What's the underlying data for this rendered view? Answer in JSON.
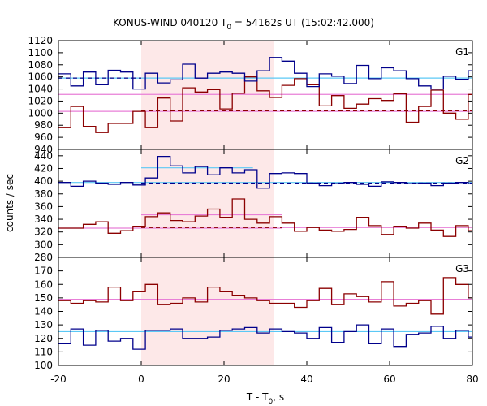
{
  "chart_data": {
    "type": "line",
    "title": {
      "main": "KONUS-WIND 040120 T",
      "sub": "0",
      "rest": " = 54162s UT (15:02:42.000)"
    },
    "xlabel": {
      "main": "T - T",
      "sub": "0",
      "rest": ", s"
    },
    "ylabel": "counts / sec",
    "xlim": [
      -20,
      80
    ],
    "x_ticks": [
      -20,
      0,
      20,
      40,
      60,
      80
    ],
    "highlight_interval": [
      0,
      32
    ],
    "highlight_color": "#fde8e8",
    "colors": {
      "red_series": "#8b0000",
      "blue_series": "#00008b",
      "red_fit": "#e87fd7",
      "blue_fit": "#5bc8f5",
      "dashed_red": "#8b0000",
      "dashed_blue": "#00008b"
    },
    "panels": [
      {
        "label": "G1",
        "ylim": [
          940,
          1120
        ],
        "y_ticks": [
          960,
          980,
          1000,
          1020,
          1040,
          1060,
          1080,
          1100,
          1120
        ],
        "y_tick_min": 940,
        "red": {
          "x": [
            -20,
            -17,
            -14,
            -11,
            -8,
            -5,
            -2,
            1,
            4,
            7,
            10,
            13,
            16,
            19,
            22,
            25,
            28,
            31,
            34,
            37,
            40,
            43,
            46,
            49,
            52,
            55,
            58,
            61,
            64,
            67,
            70,
            73,
            76,
            79
          ],
          "values": [
            976,
            1011,
            978,
            968,
            983,
            983,
            1003,
            976,
            1025,
            987,
            1042,
            1035,
            1039,
            1007,
            1033,
            1060,
            1037,
            1026,
            1046,
            1057,
            1047,
            1012,
            1029,
            1008,
            1015,
            1024,
            1021,
            1032,
            985,
            1011,
            1038,
            1000,
            990,
            1031
          ]
        },
        "red_fit": {
          "x": [
            -20,
            80
          ],
          "values": [
            1003,
            1003
          ]
        },
        "red_dashed": {
          "x": [
            0,
            80
          ],
          "values": [
            1004,
            1004
          ]
        },
        "blue": {
          "x": [
            -20,
            -17,
            -14,
            -11,
            -8,
            -5,
            -2,
            1,
            4,
            7,
            10,
            13,
            16,
            19,
            22,
            25,
            28,
            31,
            34,
            37,
            40,
            43,
            46,
            49,
            52,
            55,
            58,
            61,
            64,
            67,
            70,
            73,
            76,
            79
          ],
          "values": [
            1065,
            1045,
            1068,
            1047,
            1071,
            1068,
            1040,
            1066,
            1050,
            1055,
            1081,
            1058,
            1066,
            1068,
            1066,
            1053,
            1070,
            1092,
            1086,
            1066,
            1044,
            1065,
            1061,
            1049,
            1079,
            1057,
            1075,
            1070,
            1057,
            1045,
            1040,
            1061,
            1056,
            1070
          ]
        },
        "blue_fit": {
          "x": [
            -20,
            80
          ],
          "values": [
            1058,
            1058
          ]
        },
        "blue_dashed": {
          "x": [
            -20,
            0
          ],
          "values": [
            1058,
            1058
          ]
        },
        "extra_fit": {
          "x": [
            -20,
            80
          ],
          "values": [
            1031,
            1031
          ]
        }
      },
      {
        "label": "G2",
        "ylim": [
          280,
          450
        ],
        "y_ticks": [
          280,
          300,
          320,
          340,
          360,
          380,
          400,
          420,
          440
        ],
        "y_tick_min": 280,
        "red": {
          "x": [
            -20,
            -17,
            -14,
            -11,
            -8,
            -5,
            -2,
            1,
            4,
            7,
            10,
            13,
            16,
            19,
            22,
            25,
            28,
            31,
            34,
            37,
            40,
            43,
            46,
            49,
            52,
            55,
            58,
            61,
            64,
            67,
            70,
            73,
            76,
            79
          ],
          "values": [
            326,
            326,
            332,
            336,
            318,
            322,
            329,
            344,
            350,
            338,
            336,
            345,
            356,
            343,
            372,
            340,
            334,
            344,
            334,
            321,
            327,
            323,
            321,
            324,
            343,
            330,
            316,
            329,
            326,
            334,
            323,
            313,
            330,
            322
          ]
        },
        "red_fit": {
          "x": [
            -20,
            34
          ],
          "values": [
            326,
            326
          ]
        },
        "red_fit_high": {
          "x": [
            0,
            34
          ],
          "values": [
            347,
            347
          ]
        },
        "red_fit_low": {
          "x": [
            34,
            80
          ],
          "values": [
            327,
            327
          ]
        },
        "red_dashed": {
          "x": [
            0,
            34
          ],
          "values": [
            327,
            327
          ]
        },
        "blue": {
          "x": [
            -20,
            -17,
            -14,
            -11,
            -8,
            -5,
            -2,
            1,
            4,
            7,
            10,
            13,
            16,
            19,
            22,
            25,
            28,
            31,
            34,
            37,
            40,
            43,
            46,
            49,
            52,
            55,
            58,
            61,
            64,
            67,
            70,
            73,
            76,
            79
          ],
          "values": [
            398,
            392,
            400,
            397,
            395,
            398,
            394,
            405,
            439,
            424,
            413,
            423,
            410,
            421,
            413,
            418,
            389,
            412,
            413,
            412,
            397,
            393,
            396,
            398,
            395,
            392,
            399,
            398,
            396,
            397,
            393,
            397,
            398,
            396
          ]
        },
        "blue_fit_high": {
          "x": [
            0,
            27
          ],
          "values": [
            421,
            421
          ]
        },
        "blue_fit": {
          "x": [
            -20,
            80
          ],
          "values": [
            398,
            398
          ]
        },
        "blue_dashed": {
          "x": [
            0,
            80
          ],
          "values": [
            397,
            397
          ]
        }
      },
      {
        "label": "G3",
        "ylim": [
          100,
          180
        ],
        "y_ticks": [
          100,
          110,
          120,
          130,
          140,
          150,
          160,
          170
        ],
        "y_tick_min": 100,
        "red": {
          "x": [
            -20,
            -17,
            -14,
            -11,
            -8,
            -5,
            -2,
            1,
            4,
            7,
            10,
            13,
            16,
            19,
            22,
            25,
            28,
            31,
            34,
            37,
            40,
            43,
            46,
            49,
            52,
            55,
            58,
            61,
            64,
            67,
            70,
            73,
            76,
            79
          ],
          "values": [
            148,
            146,
            148,
            147,
            158,
            148,
            155,
            160,
            145,
            146,
            150,
            147,
            158,
            155,
            152,
            150,
            148,
            146,
            146,
            143,
            148,
            157,
            145,
            153,
            151,
            147,
            162,
            144,
            146,
            148,
            138,
            165,
            160,
            150
          ]
        },
        "red_fit": {
          "x": [
            -20,
            80
          ],
          "values": [
            149,
            149
          ]
        },
        "blue": {
          "x": [
            -20,
            -17,
            -14,
            -11,
            -8,
            -5,
            -2,
            1,
            4,
            7,
            10,
            13,
            16,
            19,
            22,
            25,
            28,
            31,
            34,
            37,
            40,
            43,
            46,
            49,
            52,
            55,
            58,
            61,
            64,
            67,
            70,
            73,
            76,
            79
          ],
          "values": [
            116,
            127,
            115,
            126,
            118,
            120,
            112,
            126,
            126,
            127,
            120,
            120,
            121,
            126,
            127,
            128,
            124,
            127,
            125,
            124,
            120,
            128,
            117,
            125,
            130,
            116,
            127,
            114,
            123,
            124,
            129,
            120,
            126,
            121
          ]
        },
        "blue_fit": {
          "x": [
            -20,
            80
          ],
          "values": [
            125,
            125
          ]
        }
      }
    ]
  }
}
